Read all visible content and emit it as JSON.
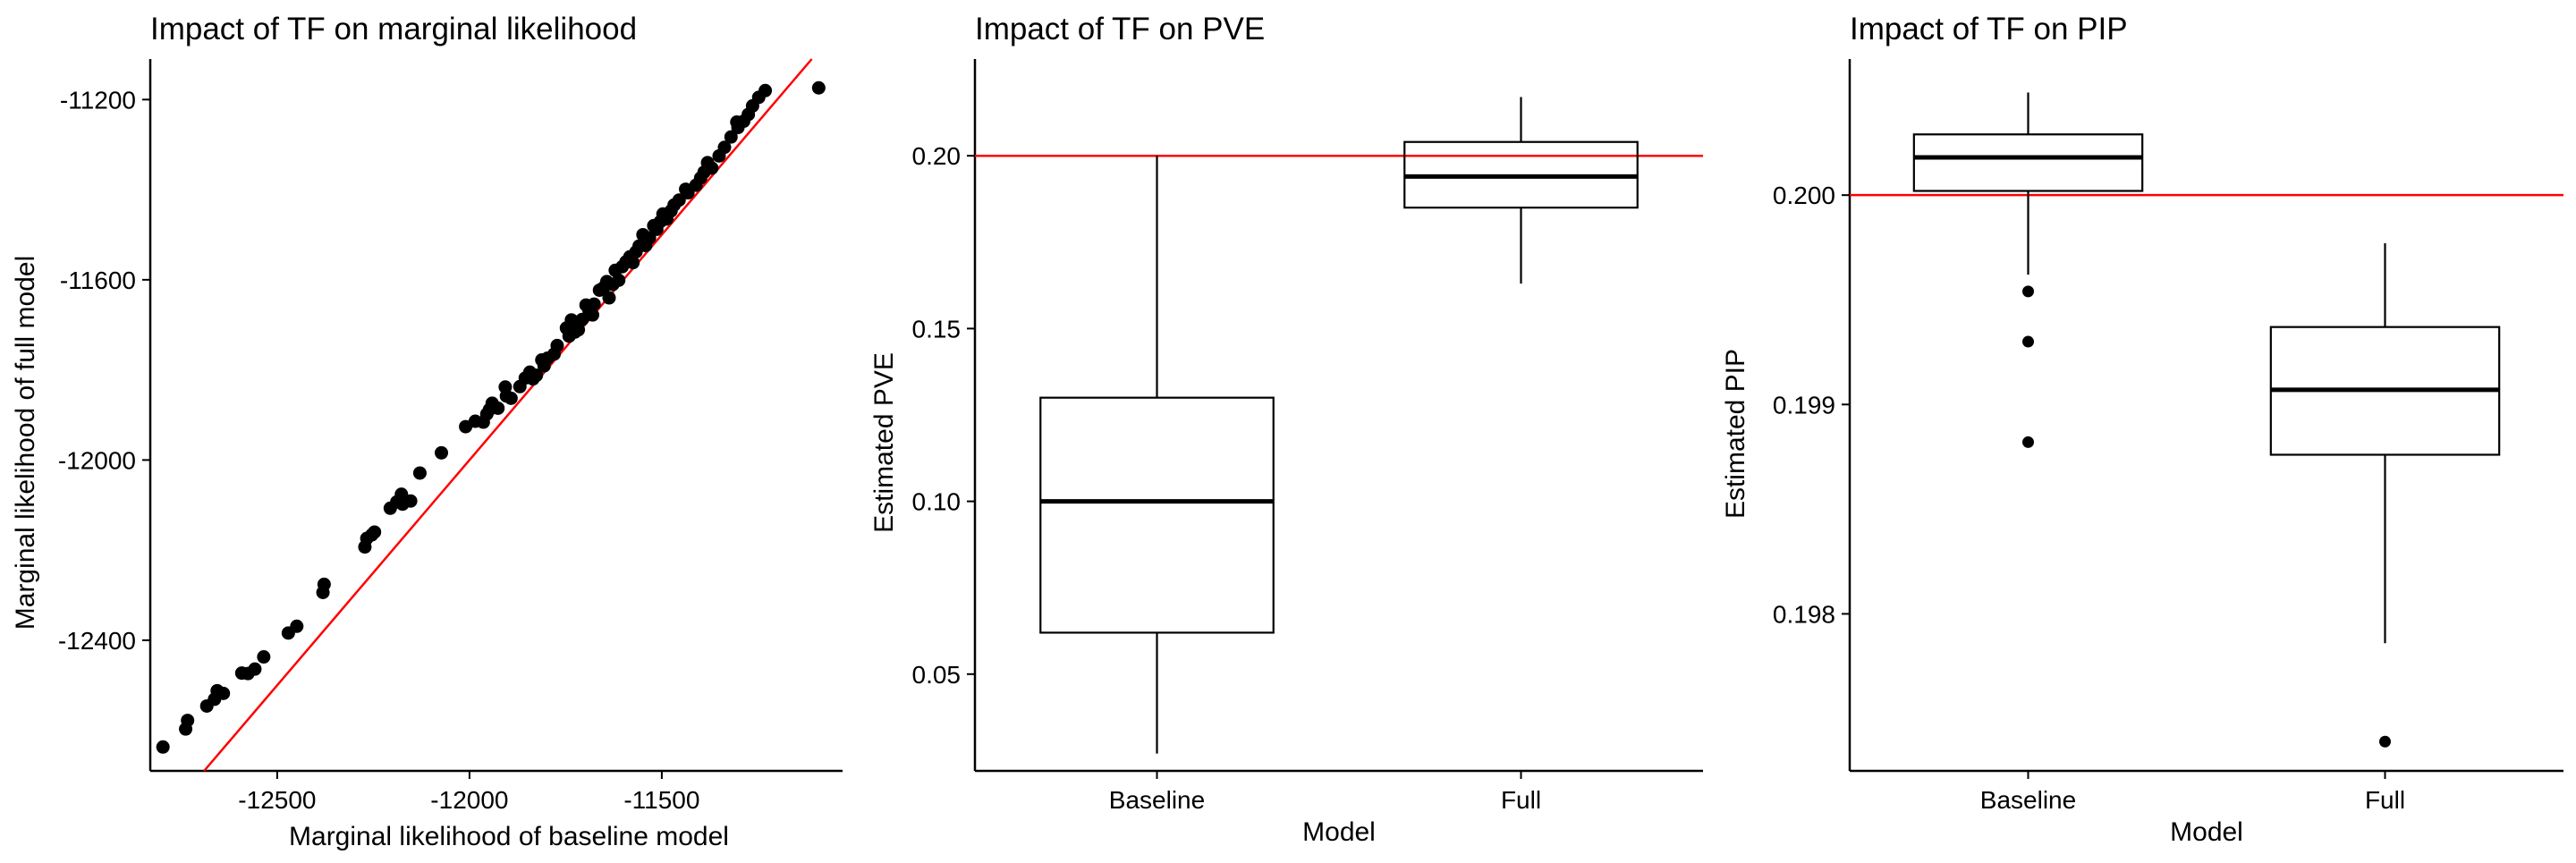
{
  "chart_data": [
    {
      "type": "scatter",
      "title": "Impact of TF on marginal likelihood",
      "xlabel": "Marginal likelihood of baseline model",
      "ylabel": "Marginal likelihood of full model",
      "xlim": [
        -12830,
        -11030
      ],
      "ylim": [
        -12690,
        -11110
      ],
      "xticks": [
        -12500,
        -12000,
        -11500
      ],
      "xtick_labels": [
        "-12500",
        "-12000",
        "-11500"
      ],
      "yticks": [
        -12400,
        -12000,
        -11600,
        -11200
      ],
      "ytick_labels": [
        "-12400",
        "-12000",
        "-11600",
        "-11200"
      ],
      "grid": false,
      "reference_line": {
        "slope": 1,
        "intercept": 0,
        "color": "#ff0000"
      },
      "point_color": "#000000",
      "points": [
        [
          -12797,
          -12637
        ],
        [
          -12738,
          -12597
        ],
        [
          -12733,
          -12578
        ],
        [
          -12683,
          -12546
        ],
        [
          -12663,
          -12531
        ],
        [
          -12656,
          -12512
        ],
        [
          -12640,
          -12518
        ],
        [
          -12592,
          -12473
        ],
        [
          -12576,
          -12474
        ],
        [
          -12558,
          -12464
        ],
        [
          -12535,
          -12437
        ],
        [
          -12471,
          -12384
        ],
        [
          -12449,
          -12369
        ],
        [
          -12381,
          -12294
        ],
        [
          -12378,
          -12276
        ],
        [
          -12272,
          -12193
        ],
        [
          -12267,
          -12174
        ],
        [
          -12254,
          -12166
        ],
        [
          -12247,
          -12160
        ],
        [
          -12206,
          -12107
        ],
        [
          -12189,
          -12093
        ],
        [
          -12177,
          -12076
        ],
        [
          -12174,
          -12098
        ],
        [
          -12153,
          -12091
        ],
        [
          -12129,
          -12029
        ],
        [
          -12073,
          -11984
        ],
        [
          -12010,
          -11926
        ],
        [
          -11985,
          -11914
        ],
        [
          -11964,
          -11916
        ],
        [
          -11955,
          -11898
        ],
        [
          -11948,
          -11888
        ],
        [
          -11941,
          -11874
        ],
        [
          -11926,
          -11885
        ],
        [
          -11907,
          -11838
        ],
        [
          -11904,
          -11858
        ],
        [
          -11892,
          -11863
        ],
        [
          -11869,
          -11837
        ],
        [
          -11855,
          -11818
        ],
        [
          -11843,
          -11805
        ],
        [
          -11835,
          -11820
        ],
        [
          -11826,
          -11812
        ],
        [
          -11812,
          -11778
        ],
        [
          -11806,
          -11791
        ],
        [
          -11797,
          -11774
        ],
        [
          -11780,
          -11765
        ],
        [
          -11772,
          -11746
        ],
        [
          -11748,
          -11707
        ],
        [
          -11741,
          -11725
        ],
        [
          -11735,
          -11689
        ],
        [
          -11726,
          -11716
        ],
        [
          -11717,
          -11711
        ],
        [
          -11707,
          -11688
        ],
        [
          -11697,
          -11656
        ],
        [
          -11689,
          -11669
        ],
        [
          -11680,
          -11678
        ],
        [
          -11676,
          -11654
        ],
        [
          -11662,
          -11623
        ],
        [
          -11652,
          -11618
        ],
        [
          -11643,
          -11604
        ],
        [
          -11637,
          -11640
        ],
        [
          -11627,
          -11610
        ],
        [
          -11621,
          -11579
        ],
        [
          -11612,
          -11601
        ],
        [
          -11603,
          -11571
        ],
        [
          -11593,
          -11560
        ],
        [
          -11583,
          -11549
        ],
        [
          -11575,
          -11562
        ],
        [
          -11567,
          -11538
        ],
        [
          -11559,
          -11525
        ],
        [
          -11549,
          -11500
        ],
        [
          -11542,
          -11524
        ],
        [
          -11532,
          -11507
        ],
        [
          -11521,
          -11480
        ],
        [
          -11513,
          -11488
        ],
        [
          -11504,
          -11471
        ],
        [
          -11497,
          -11454
        ],
        [
          -11487,
          -11465
        ],
        [
          -11476,
          -11447
        ],
        [
          -11468,
          -11434
        ],
        [
          -11455,
          -11423
        ],
        [
          -11438,
          -11399
        ],
        [
          -11432,
          -11407
        ],
        [
          -11411,
          -11390
        ],
        [
          -11399,
          -11374
        ],
        [
          -11390,
          -11361
        ],
        [
          -11381,
          -11340
        ],
        [
          -11370,
          -11352
        ],
        [
          -11351,
          -11325
        ],
        [
          -11337,
          -11306
        ],
        [
          -11320,
          -11283
        ],
        [
          -11302,
          -11262
        ],
        [
          -11287,
          -11248
        ],
        [
          -11275,
          -11233
        ],
        [
          -11264,
          -11214
        ],
        [
          -11248,
          -11195
        ],
        [
          -11231,
          -11180
        ],
        [
          -11305,
          -11250
        ],
        [
          -11092,
          -11174
        ]
      ]
    },
    {
      "type": "box",
      "title": "Impact of TF on PVE",
      "xlabel": "Model",
      "ylabel": "Estimated PVE",
      "categories": [
        "Baseline",
        "Full"
      ],
      "ylim": [
        0.022,
        0.228
      ],
      "yticks": [
        0.05,
        0.1,
        0.15,
        0.2
      ],
      "ytick_labels": [
        "0.05",
        "0.10",
        "0.15",
        "0.20"
      ],
      "grid": false,
      "reference_line": {
        "y": 0.2,
        "color": "#ff0000"
      },
      "boxes": [
        {
          "category": "Baseline",
          "min": 0.027,
          "q1": 0.062,
          "median": 0.1,
          "q3": 0.13,
          "max": 0.2,
          "outliers": []
        },
        {
          "category": "Full",
          "min": 0.163,
          "q1": 0.185,
          "median": 0.194,
          "q3": 0.204,
          "max": 0.217,
          "outliers": []
        }
      ]
    },
    {
      "type": "box",
      "title": "Impact of TF on PIP",
      "xlabel": "Model",
      "ylabel": "Estimated PIP",
      "categories": [
        "Baseline",
        "Full"
      ],
      "ylim": [
        0.19725,
        0.20065
      ],
      "yticks": [
        0.198,
        0.199,
        0.2
      ],
      "ytick_labels": [
        "0.198",
        "0.199",
        "0.200"
      ],
      "grid": false,
      "reference_line": {
        "y": 0.2,
        "color": "#ff0000"
      },
      "boxes": [
        {
          "category": "Baseline",
          "min": 0.19962,
          "q1": 0.20002,
          "median": 0.20018,
          "q3": 0.20029,
          "max": 0.20049,
          "outliers": [
            0.19954,
            0.1993,
            0.19882
          ]
        },
        {
          "category": "Full",
          "min": 0.19786,
          "q1": 0.19876,
          "median": 0.19907,
          "q3": 0.19937,
          "max": 0.19977,
          "outliers": [
            0.19739
          ]
        }
      ]
    }
  ]
}
